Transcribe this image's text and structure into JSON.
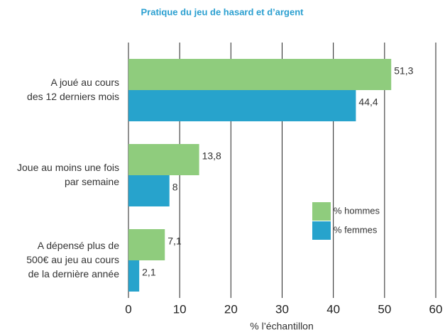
{
  "chart_data": {
    "type": "bar",
    "orientation": "horizontal",
    "title": "Pratique du jeu de hasard et d’argent",
    "xlabel": "% l’échantillon",
    "categories": [
      [
        "A joué au cours",
        "des 12 derniers mois"
      ],
      [
        "Joue au moins une fois",
        "par semaine"
      ],
      [
        "A dépensé plus de",
        "500€ au jeu au cours",
        "de la dernière année"
      ]
    ],
    "series": [
      {
        "name": "% hommes",
        "color": "#8fcc7d",
        "values": [
          51.3,
          13.8,
          7.1
        ],
        "value_labels": [
          "51,3",
          "13,8",
          "7,1"
        ]
      },
      {
        "name": "% femmes",
        "color": "#27a3cc",
        "values": [
          44.4,
          8,
          2.1
        ],
        "value_labels": [
          "44,4",
          "8",
          "2,1"
        ]
      }
    ],
    "xlim": [
      0,
      60
    ],
    "xticks": [
      0,
      10,
      20,
      30,
      40,
      50,
      60
    ],
    "grid": true
  }
}
